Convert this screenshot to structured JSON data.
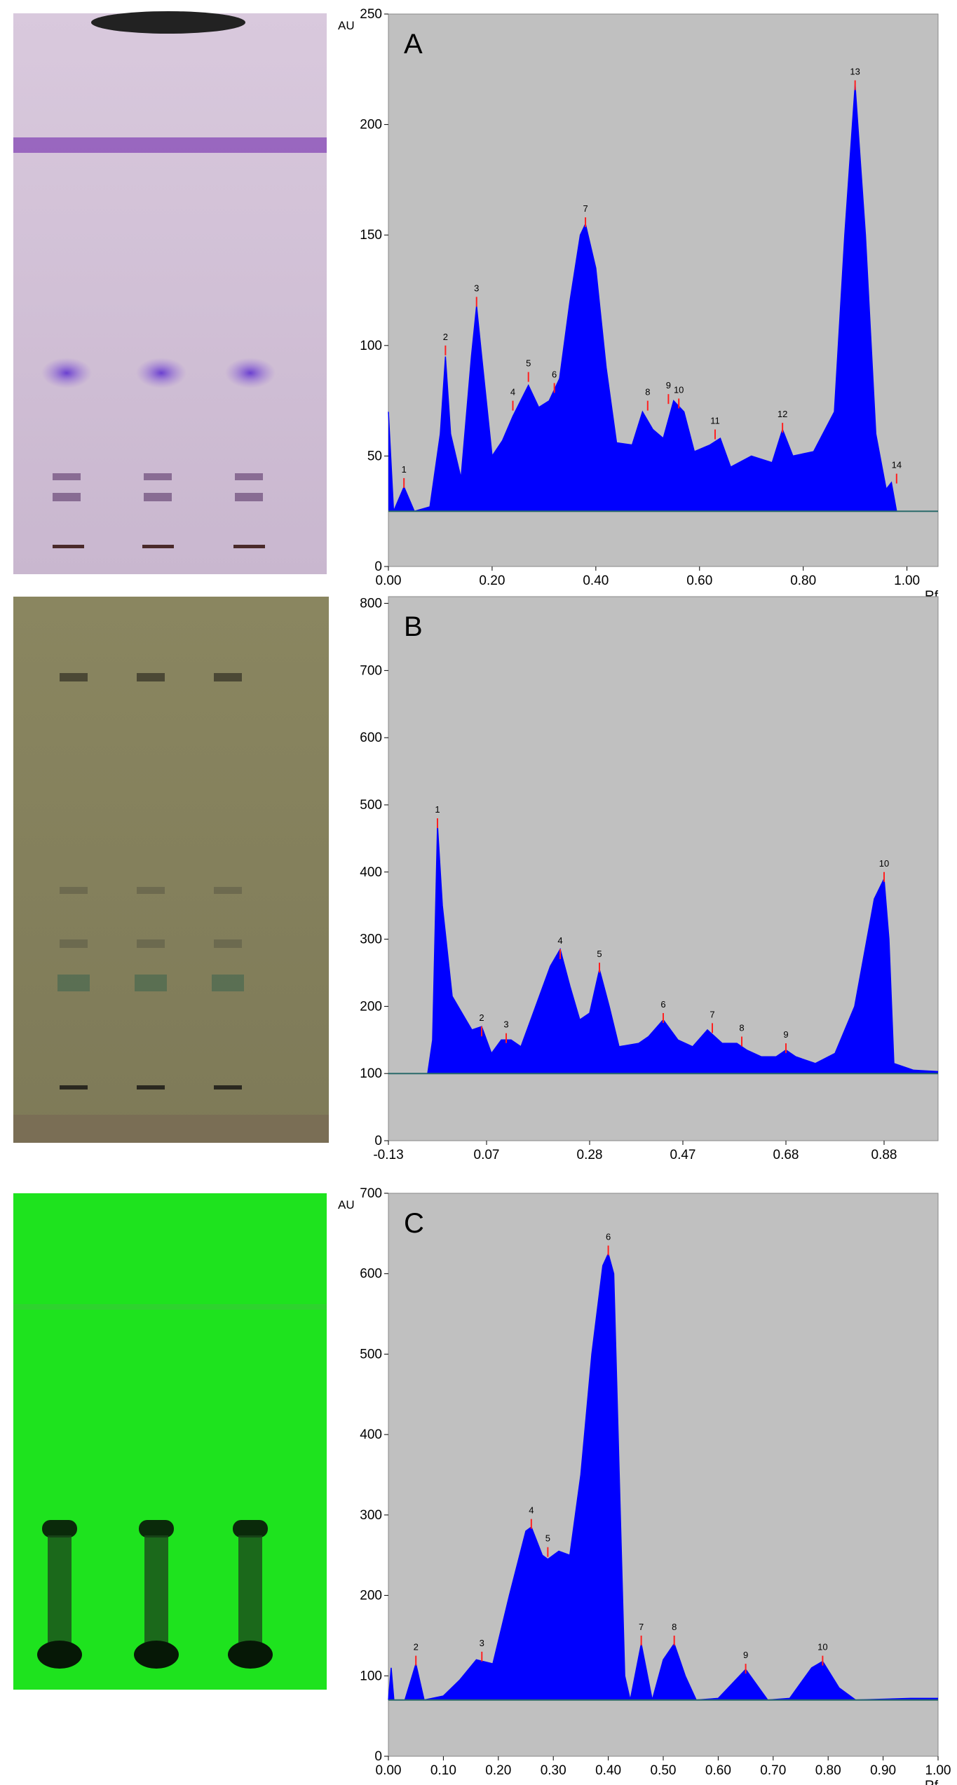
{
  "chart_data": [
    {
      "type": "densitogram",
      "title": "A",
      "y_label": "AU",
      "x_label": "Rf",
      "xlim": [
        0,
        1.06
      ],
      "ylim": [
        0,
        250
      ],
      "xticks": [
        {
          "value": 0,
          "label": "0.00"
        },
        {
          "value": 0.2,
          "label": "0.20"
        },
        {
          "value": 0.4,
          "label": "0.40"
        },
        {
          "value": 0.6,
          "label": "0.60"
        },
        {
          "value": 0.8,
          "label": "0.80"
        },
        {
          "value": 1,
          "label": "1.00"
        }
      ],
      "yticks": [
        0,
        50,
        100,
        150,
        200,
        250
      ],
      "baseline": 25,
      "color": "#0000ff",
      "x": [
        0,
        0.01,
        0.03,
        0.05,
        0.08,
        0.1,
        0.11,
        0.12,
        0.14,
        0.16,
        0.17,
        0.18,
        0.2,
        0.22,
        0.24,
        0.27,
        0.29,
        0.31,
        0.33,
        0.35,
        0.37,
        0.38,
        0.4,
        0.42,
        0.44,
        0.47,
        0.49,
        0.51,
        0.53,
        0.55,
        0.57,
        0.59,
        0.62,
        0.64,
        0.66,
        0.7,
        0.74,
        0.76,
        0.78,
        0.82,
        0.86,
        0.88,
        0.9,
        0.92,
        0.94,
        0.96,
        0.97,
        0.98,
        1.0,
        1.06
      ],
      "values": [
        70,
        25,
        36,
        25,
        27,
        60,
        95,
        60,
        40,
        95,
        118,
        95,
        50,
        57,
        68,
        82,
        72,
        75,
        85,
        120,
        150,
        155,
        135,
        90,
        56,
        55,
        70,
        62,
        58,
        75,
        70,
        52,
        55,
        58,
        45,
        50,
        47,
        62,
        50,
        52,
        70,
        150,
        218,
        150,
        60,
        35,
        38,
        25,
        25,
        25
      ],
      "peaks": [
        {
          "label": "1",
          "x": 0.03,
          "y": 40
        },
        {
          "label": "2",
          "x": 0.11,
          "y": 100
        },
        {
          "label": "3",
          "x": 0.17,
          "y": 122
        },
        {
          "label": "4",
          "x": 0.24,
          "y": 75
        },
        {
          "label": "5",
          "x": 0.27,
          "y": 88
        },
        {
          "label": "6",
          "x": 0.32,
          "y": 83
        },
        {
          "label": "7",
          "x": 0.38,
          "y": 158
        },
        {
          "label": "8",
          "x": 0.5,
          "y": 75
        },
        {
          "label": "9",
          "x": 0.54,
          "y": 78
        },
        {
          "label": "10",
          "x": 0.56,
          "y": 76
        },
        {
          "label": "11",
          "x": 0.63,
          "y": 62
        },
        {
          "label": "12",
          "x": 0.76,
          "y": 65
        },
        {
          "label": "13",
          "x": 0.9,
          "y": 220
        },
        {
          "label": "14",
          "x": 0.98,
          "y": 42
        }
      ]
    },
    {
      "type": "densitogram",
      "title": "B",
      "xlim": [
        -0.13,
        0.99
      ],
      "ylim": [
        0,
        810
      ],
      "xticks": [
        -0.13,
        0.07,
        0.28,
        0.47,
        0.68,
        0.88
      ],
      "yticks": [
        0,
        100,
        200,
        300,
        400,
        500,
        600,
        700,
        800
      ],
      "baseline": 100,
      "color": "#0000ff",
      "x": [
        -0.13,
        -0.05,
        -0.04,
        -0.03,
        -0.02,
        0.0,
        0.02,
        0.04,
        0.06,
        0.08,
        0.1,
        0.12,
        0.14,
        0.17,
        0.2,
        0.22,
        0.24,
        0.26,
        0.28,
        0.3,
        0.32,
        0.34,
        0.38,
        0.4,
        0.43,
        0.46,
        0.49,
        0.52,
        0.55,
        0.58,
        0.6,
        0.63,
        0.66,
        0.68,
        0.7,
        0.74,
        0.78,
        0.82,
        0.84,
        0.86,
        0.88,
        0.89,
        0.9,
        0.94,
        0.99
      ],
      "values": [
        100,
        100,
        150,
        470,
        350,
        215,
        190,
        165,
        170,
        130,
        150,
        150,
        140,
        200,
        260,
        285,
        230,
        180,
        190,
        255,
        200,
        140,
        145,
        155,
        180,
        150,
        140,
        165,
        145,
        145,
        135,
        125,
        125,
        135,
        125,
        115,
        130,
        200,
        280,
        360,
        390,
        300,
        115,
        105,
        103
      ],
      "peaks": [
        {
          "label": "1",
          "x": -0.03,
          "y": 480
        },
        {
          "label": "2",
          "x": 0.06,
          "y": 170
        },
        {
          "label": "3",
          "x": 0.11,
          "y": 160
        },
        {
          "label": "4",
          "x": 0.22,
          "y": 285
        },
        {
          "label": "5",
          "x": 0.3,
          "y": 265
        },
        {
          "label": "6",
          "x": 0.43,
          "y": 190
        },
        {
          "label": "7",
          "x": 0.53,
          "y": 175
        },
        {
          "label": "8",
          "x": 0.59,
          "y": 155
        },
        {
          "label": "9",
          "x": 0.68,
          "y": 145
        },
        {
          "label": "10",
          "x": 0.88,
          "y": 400
        }
      ]
    },
    {
      "type": "densitogram",
      "title": "C",
      "y_label": "AU",
      "x_label": "Rf",
      "xlim": [
        0,
        1
      ],
      "ylim": [
        0,
        700
      ],
      "xticks": [
        {
          "value": 0,
          "label": "0.00"
        },
        {
          "value": 0.1,
          "label": "0.10"
        },
        {
          "value": 0.2,
          "label": "0.20"
        },
        {
          "value": 0.3,
          "label": "0.30"
        },
        {
          "value": 0.4,
          "label": "0.40"
        },
        {
          "value": 0.5,
          "label": "0.50"
        },
        {
          "value": 0.6,
          "label": "0.60"
        },
        {
          "value": 0.7,
          "label": "0.70"
        },
        {
          "value": 0.8,
          "label": "0.80"
        },
        {
          "value": 0.9,
          "label": "0.90"
        },
        {
          "value": 1,
          "label": "1.00"
        }
      ],
      "yticks": [
        0,
        100,
        200,
        300,
        400,
        500,
        600,
        700
      ],
      "baseline": 70,
      "color": "#0000ff",
      "x": [
        0,
        0.005,
        0.01,
        0.03,
        0.05,
        0.065,
        0.1,
        0.13,
        0.16,
        0.19,
        0.22,
        0.25,
        0.26,
        0.28,
        0.29,
        0.31,
        0.33,
        0.35,
        0.37,
        0.39,
        0.4,
        0.41,
        0.42,
        0.43,
        0.44,
        0.46,
        0.48,
        0.5,
        0.52,
        0.54,
        0.56,
        0.6,
        0.65,
        0.69,
        0.73,
        0.77,
        0.79,
        0.82,
        0.85,
        0.95,
        1.0
      ],
      "values": [
        70,
        110,
        70,
        70,
        115,
        70,
        75,
        95,
        120,
        115,
        200,
        280,
        285,
        250,
        245,
        255,
        250,
        350,
        500,
        610,
        625,
        600,
        350,
        100,
        70,
        140,
        70,
        120,
        140,
        100,
        70,
        72,
        108,
        70,
        72,
        110,
        118,
        85,
        70,
        72,
        72
      ],
      "peaks": [
        {
          "label": "2",
          "x": 0.05,
          "y": 125
        },
        {
          "label": "3",
          "x": 0.17,
          "y": 130
        },
        {
          "label": "4",
          "x": 0.26,
          "y": 295
        },
        {
          "label": "5",
          "x": 0.29,
          "y": 260
        },
        {
          "label": "6",
          "x": 0.4,
          "y": 635
        },
        {
          "label": "7",
          "x": 0.46,
          "y": 150
        },
        {
          "label": "8",
          "x": 0.52,
          "y": 150
        },
        {
          "label": "9",
          "x": 0.65,
          "y": 115
        },
        {
          "label": "10",
          "x": 0.79,
          "y": 125
        }
      ]
    }
  ]
}
